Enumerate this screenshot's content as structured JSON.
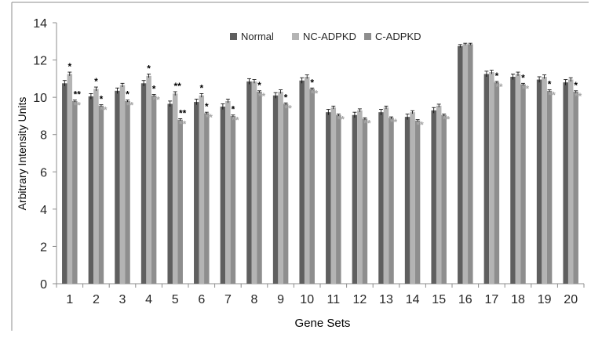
{
  "chart_data": {
    "type": "bar",
    "title": "",
    "xlabel": "Gene Sets",
    "ylabel": "Arbitrary Intensity Units",
    "ylim": [
      0,
      14
    ],
    "yticks": [
      "0",
      "2",
      "4",
      "6",
      "8",
      "10",
      "12",
      "14"
    ],
    "grid": false,
    "legend_position": "top-center",
    "categories": [
      "1",
      "2",
      "3",
      "4",
      "5",
      "6",
      "7",
      "8",
      "9",
      "10",
      "11",
      "12",
      "13",
      "14",
      "15",
      "16",
      "17",
      "18",
      "19",
      "20"
    ],
    "series": [
      {
        "name": "Normal",
        "color": "#5f5f5f",
        "values": [
          10.75,
          10.05,
          10.35,
          10.75,
          9.65,
          9.75,
          9.5,
          10.85,
          10.1,
          10.9,
          9.2,
          9.05,
          9.2,
          8.95,
          9.3,
          12.75,
          11.25,
          11.1,
          10.95,
          10.8
        ],
        "errors": [
          0.15,
          0.15,
          0.15,
          0.15,
          0.15,
          0.15,
          0.15,
          0.15,
          0.15,
          0.15,
          0.15,
          0.15,
          0.15,
          0.15,
          0.15,
          0.08,
          0.15,
          0.15,
          0.15,
          0.15
        ]
      },
      {
        "name": "NC-ADPKD",
        "color": "#b4b4b4",
        "values": [
          11.25,
          10.45,
          10.65,
          11.15,
          10.2,
          10.1,
          9.8,
          10.85,
          10.3,
          11.1,
          9.45,
          9.3,
          9.45,
          9.2,
          9.55,
          12.85,
          11.35,
          11.25,
          11.1,
          10.95
        ],
        "errors": [
          0.1,
          0.1,
          0.1,
          0.1,
          0.1,
          0.1,
          0.1,
          0.1,
          0.1,
          0.1,
          0.08,
          0.08,
          0.08,
          0.08,
          0.08,
          0.05,
          0.1,
          0.1,
          0.1,
          0.1
        ]
      },
      {
        "name": "C-ADPKD",
        "color": "#8e8e8e",
        "values": [
          9.8,
          9.55,
          9.8,
          10.1,
          8.8,
          9.15,
          9.0,
          10.3,
          9.65,
          10.45,
          9.05,
          8.85,
          8.9,
          8.75,
          9.05,
          12.85,
          10.8,
          10.7,
          10.35,
          10.3
        ],
        "errors": [
          0.05,
          0.05,
          0.05,
          0.05,
          0.05,
          0.05,
          0.05,
          0.05,
          0.05,
          0.05,
          0.05,
          0.05,
          0.05,
          0.05,
          0.05,
          0.05,
          0.05,
          0.05,
          0.05,
          0.05
        ]
      }
    ],
    "significance": [
      {
        "category": "1",
        "markers": [
          {
            "series": 1,
            "text": "*",
            "tone": "black"
          },
          {
            "series": 2,
            "text": "**",
            "tone": "black"
          },
          {
            "series": 2,
            "text": "**",
            "tone": "gray"
          }
        ]
      },
      {
        "category": "2",
        "markers": [
          {
            "series": 1,
            "text": "*",
            "tone": "black"
          },
          {
            "series": 2,
            "text": "*",
            "tone": "black"
          },
          {
            "series": 2,
            "text": "**",
            "tone": "gray"
          }
        ]
      },
      {
        "category": "3",
        "markers": [
          {
            "series": 2,
            "text": "*",
            "tone": "black"
          },
          {
            "series": 2,
            "text": "**",
            "tone": "gray"
          }
        ]
      },
      {
        "category": "4",
        "markers": [
          {
            "series": 1,
            "text": "*",
            "tone": "black"
          },
          {
            "series": 2,
            "text": "*",
            "tone": "black"
          },
          {
            "series": 2,
            "text": "**",
            "tone": "gray"
          }
        ]
      },
      {
        "category": "5",
        "markers": [
          {
            "series": 1,
            "text": "**",
            "tone": "black"
          },
          {
            "series": 2,
            "text": "**",
            "tone": "black"
          },
          {
            "series": 2,
            "text": "**",
            "tone": "gray"
          }
        ]
      },
      {
        "category": "6",
        "markers": [
          {
            "series": 1,
            "text": "*",
            "tone": "black"
          },
          {
            "series": 2,
            "text": "*",
            "tone": "black"
          },
          {
            "series": 2,
            "text": "**",
            "tone": "gray"
          }
        ]
      },
      {
        "category": "7",
        "markers": [
          {
            "series": 2,
            "text": "*",
            "tone": "black"
          },
          {
            "series": 2,
            "text": "**",
            "tone": "gray"
          }
        ]
      },
      {
        "category": "8",
        "markers": [
          {
            "series": 2,
            "text": "*",
            "tone": "black"
          },
          {
            "series": 2,
            "text": "**",
            "tone": "gray"
          }
        ]
      },
      {
        "category": "9",
        "markers": [
          {
            "series": 2,
            "text": "*",
            "tone": "black"
          },
          {
            "series": 2,
            "text": "**",
            "tone": "gray"
          }
        ]
      },
      {
        "category": "10",
        "markers": [
          {
            "series": 2,
            "text": "*",
            "tone": "black"
          },
          {
            "series": 2,
            "text": "**",
            "tone": "gray"
          }
        ]
      },
      {
        "category": "11",
        "markers": [
          {
            "series": 2,
            "text": "**",
            "tone": "gray"
          }
        ]
      },
      {
        "category": "12",
        "markers": [
          {
            "series": 2,
            "text": "**",
            "tone": "gray"
          }
        ]
      },
      {
        "category": "13",
        "markers": [
          {
            "series": 2,
            "text": "**",
            "tone": "gray"
          }
        ]
      },
      {
        "category": "14",
        "markers": [
          {
            "series": 2,
            "text": "**",
            "tone": "gray"
          }
        ]
      },
      {
        "category": "15",
        "markers": [
          {
            "series": 2,
            "text": "**",
            "tone": "gray"
          }
        ]
      },
      {
        "category": "17",
        "markers": [
          {
            "series": 2,
            "text": "*",
            "tone": "black"
          },
          {
            "series": 2,
            "text": "**",
            "tone": "gray"
          }
        ]
      },
      {
        "category": "18",
        "markers": [
          {
            "series": 2,
            "text": "*",
            "tone": "black"
          },
          {
            "series": 2,
            "text": "**",
            "tone": "gray"
          }
        ]
      },
      {
        "category": "19",
        "markers": [
          {
            "series": 2,
            "text": "*",
            "tone": "black"
          },
          {
            "series": 2,
            "text": "**",
            "tone": "gray"
          }
        ]
      },
      {
        "category": "20",
        "markers": [
          {
            "series": 2,
            "text": "*",
            "tone": "black"
          },
          {
            "series": 2,
            "text": "**",
            "tone": "gray"
          }
        ]
      }
    ],
    "marker_colors": {
      "black": "#000000",
      "gray": "#a6a6a6"
    },
    "text_color": "#262626",
    "axis_color": "#8c8c8c"
  }
}
